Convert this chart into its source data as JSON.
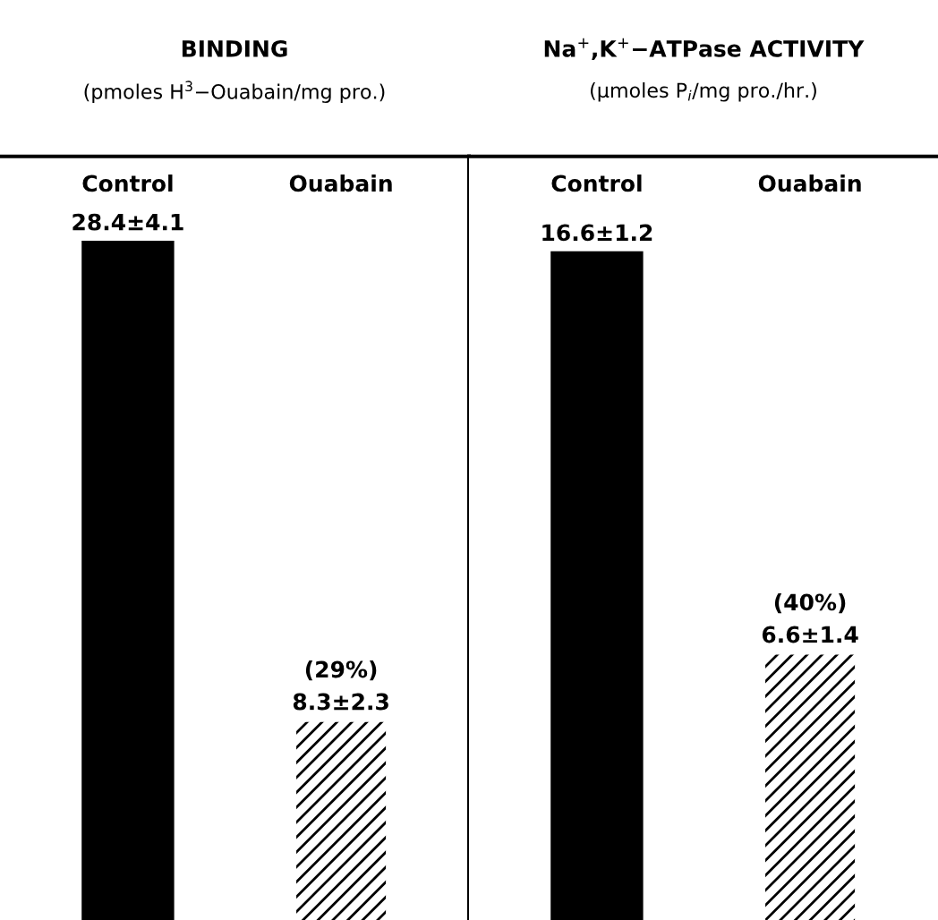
{
  "chart_data": [
    {
      "type": "bar",
      "title": "BINDING",
      "subtitle": "(pmoles H$^{3}$−Ouabain/mg pro.)",
      "categories": [
        "Control",
        "Ouabain"
      ],
      "values": [
        28.4,
        8.3
      ],
      "colors": [
        "#000000",
        "#ffffff"
      ],
      "value_labels": [
        "28.4±4.1",
        "8.3±2.3"
      ],
      "annotations": [
        {
          "text": "(29%)",
          "x": "Ouabain",
          "y": 8.3
        }
      ],
      "ylim": [
        0,
        32
      ]
    },
    {
      "type": "bar",
      "title": "Na$^{+}$,K$^{+}$−ATPase ACTIVITY",
      "subtitle": "(μmoles P$_{i}$/mg pro./hr.)",
      "categories": [
        "Control",
        "Ouabain"
      ],
      "values": [
        16.6,
        6.6
      ],
      "colors": [
        "#000000",
        "#ffffff"
      ],
      "value_labels": [
        "16.6±1.2",
        "6.6±1.4"
      ],
      "annotations": [
        {
          "text": "(40%)",
          "x": "Ouabain",
          "y": 6.6
        }
      ],
      "ylim": [
        0,
        19
      ]
    }
  ]
}
